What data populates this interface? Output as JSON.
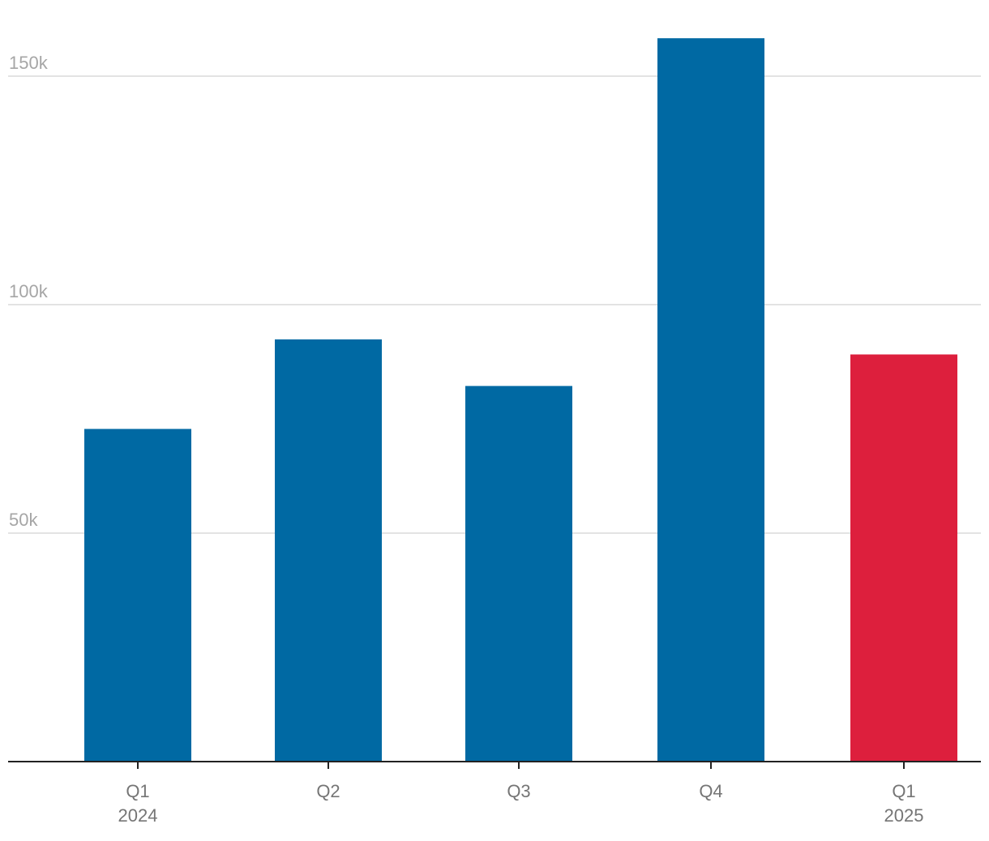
{
  "chart_data": {
    "type": "bar",
    "title": "",
    "xlabel": "",
    "ylabel": "",
    "categories": [
      {
        "quarter": "Q1",
        "year": "2024"
      },
      {
        "quarter": "Q2",
        "year": ""
      },
      {
        "quarter": "Q3",
        "year": ""
      },
      {
        "quarter": "Q4",
        "year": ""
      },
      {
        "quarter": "Q1",
        "year": "2025"
      }
    ],
    "values": [
      72800,
      92400,
      82200,
      158300,
      89100
    ],
    "bar_colors": [
      "#0069a3",
      "#0069a3",
      "#0069a3",
      "#0069a3",
      "#dd1f3d"
    ],
    "y_ticks": [
      {
        "value": 50000,
        "label": "50k"
      },
      {
        "value": 100000,
        "label": "100k"
      },
      {
        "value": 150000,
        "label": "150k"
      }
    ],
    "ylim": [
      0,
      160000
    ],
    "grid": true,
    "legend": "none"
  }
}
